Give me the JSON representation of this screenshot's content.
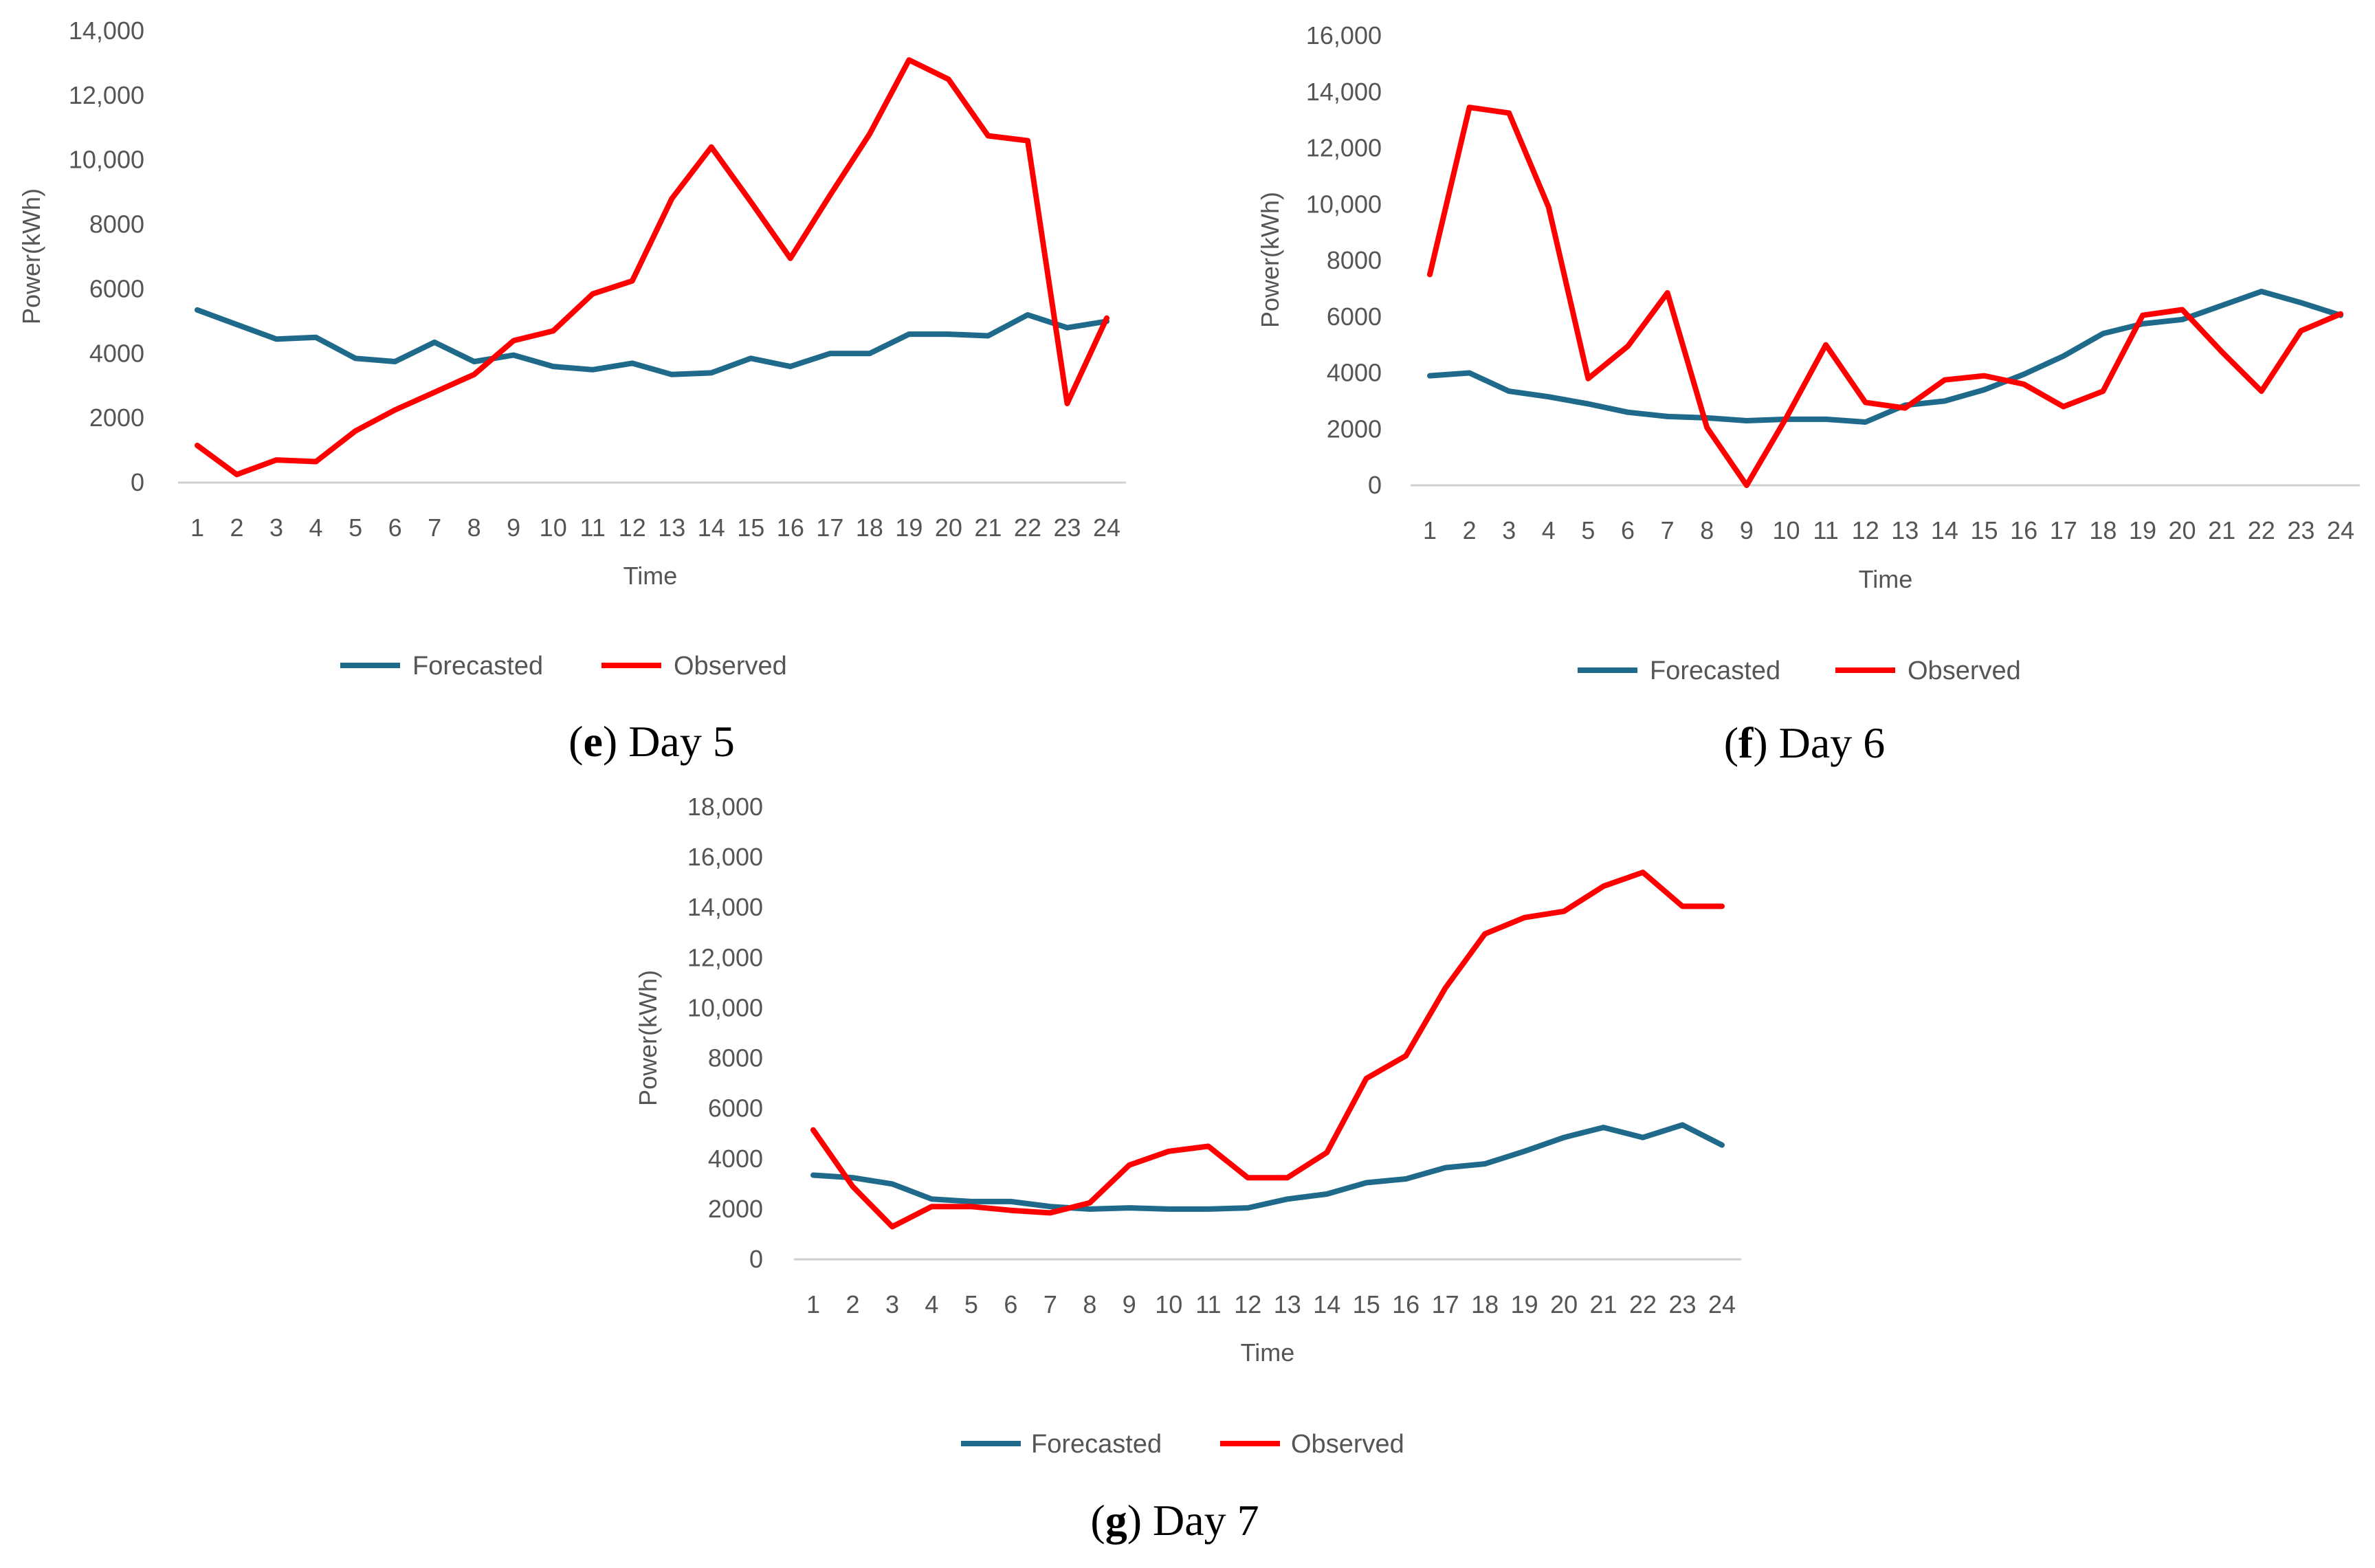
{
  "chart_data": [
    {
      "type": "line",
      "panel": "e",
      "caption_letter": "e",
      "caption_text": " Day 5",
      "caption_open": "(",
      "caption_close": ")",
      "xlabel": "Time",
      "ylabel": "Power(kWh)",
      "ylim": [
        0,
        14000
      ],
      "yticks": [
        0,
        2000,
        4000,
        6000,
        8000,
        10000,
        12000,
        14000
      ],
      "ytick_labels": [
        "0",
        "2000",
        "4000",
        "6000",
        "8000",
        "10,000",
        "12,000",
        "14,000"
      ],
      "categories": [
        "1",
        "2",
        "3",
        "4",
        "5",
        "6",
        "7",
        "8",
        "9",
        "10",
        "11",
        "12",
        "13",
        "14",
        "15",
        "16",
        "17",
        "18",
        "19",
        "20",
        "21",
        "22",
        "23",
        "24"
      ],
      "series": [
        {
          "name": "Forecasted",
          "color": "#1f6a8a",
          "values": [
            5350,
            4900,
            4450,
            4500,
            3850,
            3750,
            4350,
            3750,
            3950,
            3600,
            3500,
            3700,
            3350,
            3400,
            3850,
            3600,
            4000,
            4000,
            4600,
            4600,
            4550,
            5200,
            4800,
            5000
          ]
        },
        {
          "name": "Observed",
          "color": "#ff0000",
          "values": [
            1150,
            250,
            700,
            650,
            1600,
            2250,
            2800,
            3350,
            4400,
            4700,
            5850,
            6250,
            8800,
            10400,
            8700,
            6950,
            8900,
            10800,
            13100,
            12500,
            10750,
            10600,
            2450,
            5100
          ]
        }
      ]
    },
    {
      "type": "line",
      "panel": "f",
      "caption_letter": "f",
      "caption_text": " Day 6",
      "caption_open": "(",
      "caption_close": ")",
      "xlabel": "Time",
      "ylabel": "Power(kWh)",
      "ylim": [
        0,
        16000
      ],
      "yticks": [
        0,
        2000,
        4000,
        6000,
        8000,
        10000,
        12000,
        14000,
        16000
      ],
      "ytick_labels": [
        "0",
        "2000",
        "4000",
        "6000",
        "8000",
        "10,000",
        "12,000",
        "14,000",
        "16,000"
      ],
      "categories": [
        "1",
        "2",
        "3",
        "4",
        "5",
        "6",
        "7",
        "8",
        "9",
        "10",
        "11",
        "12",
        "13",
        "14",
        "15",
        "16",
        "17",
        "18",
        "19",
        "20",
        "21",
        "22",
        "23",
        "24"
      ],
      "series": [
        {
          "name": "Forecasted",
          "color": "#1f6a8a",
          "values": [
            3900,
            4000,
            3350,
            3150,
            2900,
            2600,
            2450,
            2400,
            2300,
            2350,
            2350,
            2250,
            2850,
            3000,
            3400,
            3950,
            4600,
            5400,
            5750,
            5900,
            6400,
            6900,
            6500,
            6050
          ]
        },
        {
          "name": "Observed",
          "color": "#ff0000",
          "values": [
            7500,
            13450,
            13250,
            9900,
            3800,
            4950,
            6850,
            2050,
            0,
            2400,
            5000,
            2950,
            2750,
            3750,
            3900,
            3600,
            2800,
            3350,
            6050,
            6250,
            4750,
            3350,
            5500,
            6100
          ]
        }
      ]
    },
    {
      "type": "line",
      "panel": "g",
      "caption_letter": "g",
      "caption_text": " Day 7",
      "caption_open": "(",
      "caption_close": ")",
      "xlabel": "Time",
      "ylabel": "Power(kWh)",
      "ylim": [
        0,
        18000
      ],
      "yticks": [
        0,
        2000,
        4000,
        6000,
        8000,
        10000,
        12000,
        14000,
        16000,
        18000
      ],
      "ytick_labels": [
        "0",
        "2000",
        "4000",
        "6000",
        "8000",
        "10,000",
        "12,000",
        "14,000",
        "16,000",
        "18,000"
      ],
      "categories": [
        "1",
        "2",
        "3",
        "4",
        "5",
        "6",
        "7",
        "8",
        "9",
        "10",
        "11",
        "12",
        "13",
        "14",
        "15",
        "16",
        "17",
        "18",
        "19",
        "20",
        "21",
        "22",
        "23",
        "24"
      ],
      "series": [
        {
          "name": "Forecasted",
          "color": "#1f6a8a",
          "values": [
            3350,
            3250,
            3000,
            2400,
            2300,
            2300,
            2100,
            2000,
            2050,
            2000,
            2000,
            2050,
            2400,
            2600,
            3050,
            3200,
            3650,
            3800,
            4300,
            4850,
            5250,
            4850,
            5350,
            4550
          ]
        },
        {
          "name": "Observed",
          "color": "#ff0000",
          "values": [
            5150,
            2900,
            1300,
            2100,
            2100,
            1950,
            1850,
            2250,
            3750,
            4300,
            4500,
            3250,
            3250,
            4250,
            7200,
            8100,
            10800,
            12950,
            13600,
            13850,
            14850,
            15400,
            14050,
            14050
          ]
        }
      ]
    }
  ]
}
